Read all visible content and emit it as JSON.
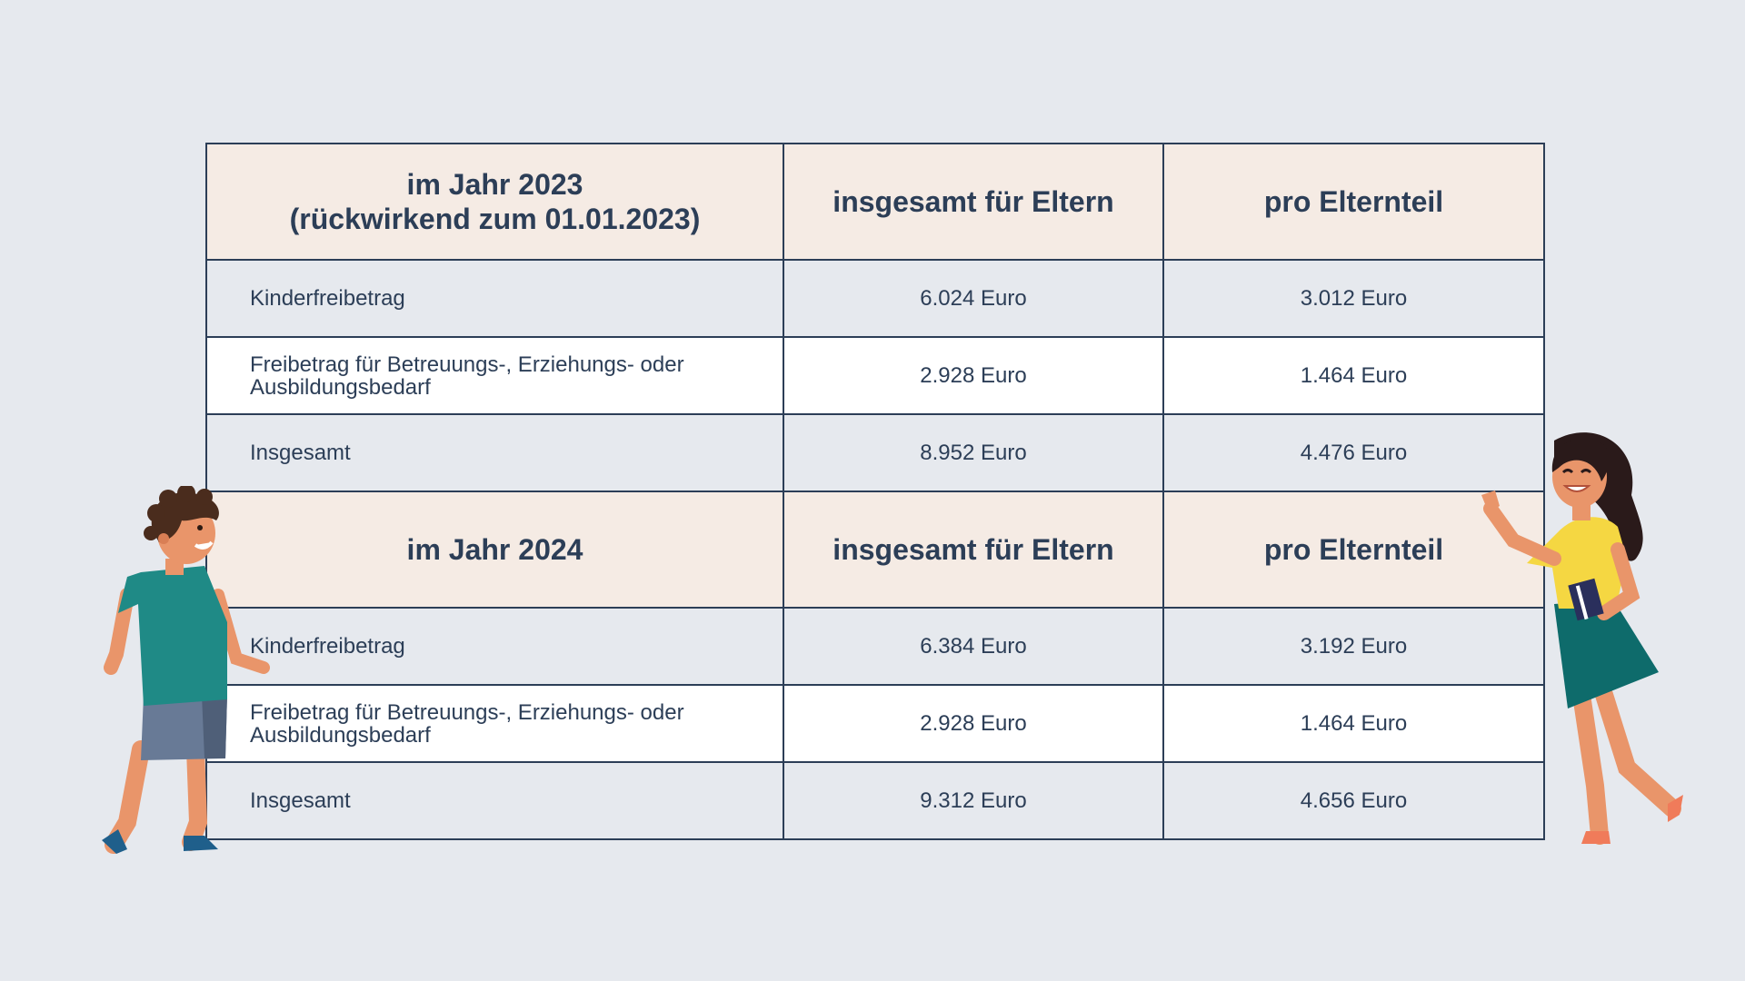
{
  "sections": [
    {
      "header": {
        "label_line1": "im Jahr 2023",
        "label_line2": "(rückwirkend zum 01.01.2023)",
        "col_total": "insgesamt für Eltern",
        "col_per_parent": "pro Elternteil"
      },
      "rows": [
        {
          "label": "Kinderfreibetrag",
          "total": "6.024 Euro",
          "per_parent": "3.012 Euro"
        },
        {
          "label": "Freibetrag für Betreuungs-, Erziehungs- oder Ausbildungsbedarf",
          "total": "2.928 Euro",
          "per_parent": "1.464 Euro"
        },
        {
          "label": "Insgesamt",
          "total": "8.952 Euro",
          "per_parent": "4.476 Euro"
        }
      ]
    },
    {
      "header": {
        "label_line1": "im Jahr 2024",
        "label_line2": "",
        "col_total": "insgesamt für Eltern",
        "col_per_parent": "pro Elternteil"
      },
      "rows": [
        {
          "label": "Kinderfreibetrag",
          "total": "6.384 Euro",
          "per_parent": "3.192 Euro"
        },
        {
          "label": "Freibetrag für Betreuungs-, Erziehungs- oder Ausbildungsbedarf",
          "total": "2.928 Euro",
          "per_parent": "1.464 Euro"
        },
        {
          "label": "Insgesamt",
          "total": "9.312 Euro",
          "per_parent": "4.656 Euro"
        }
      ]
    }
  ],
  "colors": {
    "background": "#e6e9ee",
    "header_bg": "#f5ebe4",
    "text": "#2c3e57",
    "border": "#2c3e57"
  },
  "illustrations": [
    "boy-illustration",
    "girl-illustration"
  ]
}
